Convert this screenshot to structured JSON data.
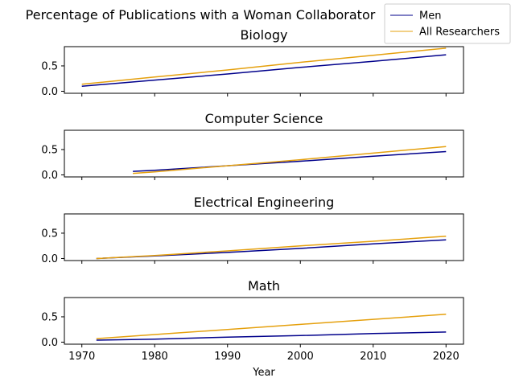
{
  "chart_data": {
    "type": "line",
    "suptitle": "Percentage of Publications with a Woman Collaborator",
    "xlabel": "Year",
    "legend": {
      "placement": "top-right",
      "entries": [
        {
          "label": "Men",
          "color": "#00008b"
        },
        {
          "label": "All Researchers",
          "color": "#e5a00d"
        }
      ]
    },
    "x_ticks": [
      "1970",
      "1980",
      "1990",
      "2000",
      "2010",
      "2020"
    ],
    "x_tick_values": [
      1970,
      1980,
      1990,
      2000,
      2010,
      2020
    ],
    "xlim": [
      1967.6,
      2022.4
    ],
    "ylim": [
      -0.04,
      0.88
    ],
    "y_ticks": [
      "0.0",
      "0.5"
    ],
    "y_tick_values": [
      0.0,
      0.5
    ],
    "grid": false,
    "panels": [
      {
        "title": "Biology",
        "x": [
          1970,
          1980,
          1990,
          2000,
          2010,
          2020
        ],
        "series": [
          {
            "name": "Men",
            "values": [
              0.1,
              0.22,
              0.34,
              0.47,
              0.59,
              0.72
            ]
          },
          {
            "name": "All Researchers",
            "values": [
              0.14,
              0.28,
              0.42,
              0.57,
              0.71,
              0.85
            ]
          }
        ]
      },
      {
        "title": "Computer Science",
        "x": [
          1977,
          1980,
          1990,
          2000,
          2010,
          2020
        ],
        "series": [
          {
            "name": "Men",
            "values": [
              0.07,
              0.09,
              0.18,
              0.27,
              0.37,
              0.46
            ]
          },
          {
            "name": "All Researchers",
            "values": [
              0.03,
              0.06,
              0.18,
              0.3,
              0.43,
              0.56
            ]
          }
        ]
      },
      {
        "title": "Electrical Engineering",
        "x": [
          1972,
          1980,
          1990,
          2000,
          2010,
          2020
        ],
        "series": [
          {
            "name": "Men",
            "values": [
              0.0,
              0.05,
              0.12,
              0.2,
              0.29,
              0.37
            ]
          },
          {
            "name": "All Researchers",
            "values": [
              0.0,
              0.06,
              0.15,
              0.25,
              0.34,
              0.44
            ]
          }
        ]
      },
      {
        "title": "Math",
        "x": [
          1972,
          1980,
          1990,
          2000,
          2010,
          2020
        ],
        "series": [
          {
            "name": "Men",
            "values": [
              0.04,
              0.06,
              0.1,
              0.13,
              0.17,
              0.2
            ]
          },
          {
            "name": "All Researchers",
            "values": [
              0.07,
              0.15,
              0.25,
              0.35,
              0.45,
              0.55
            ]
          }
        ]
      }
    ]
  }
}
